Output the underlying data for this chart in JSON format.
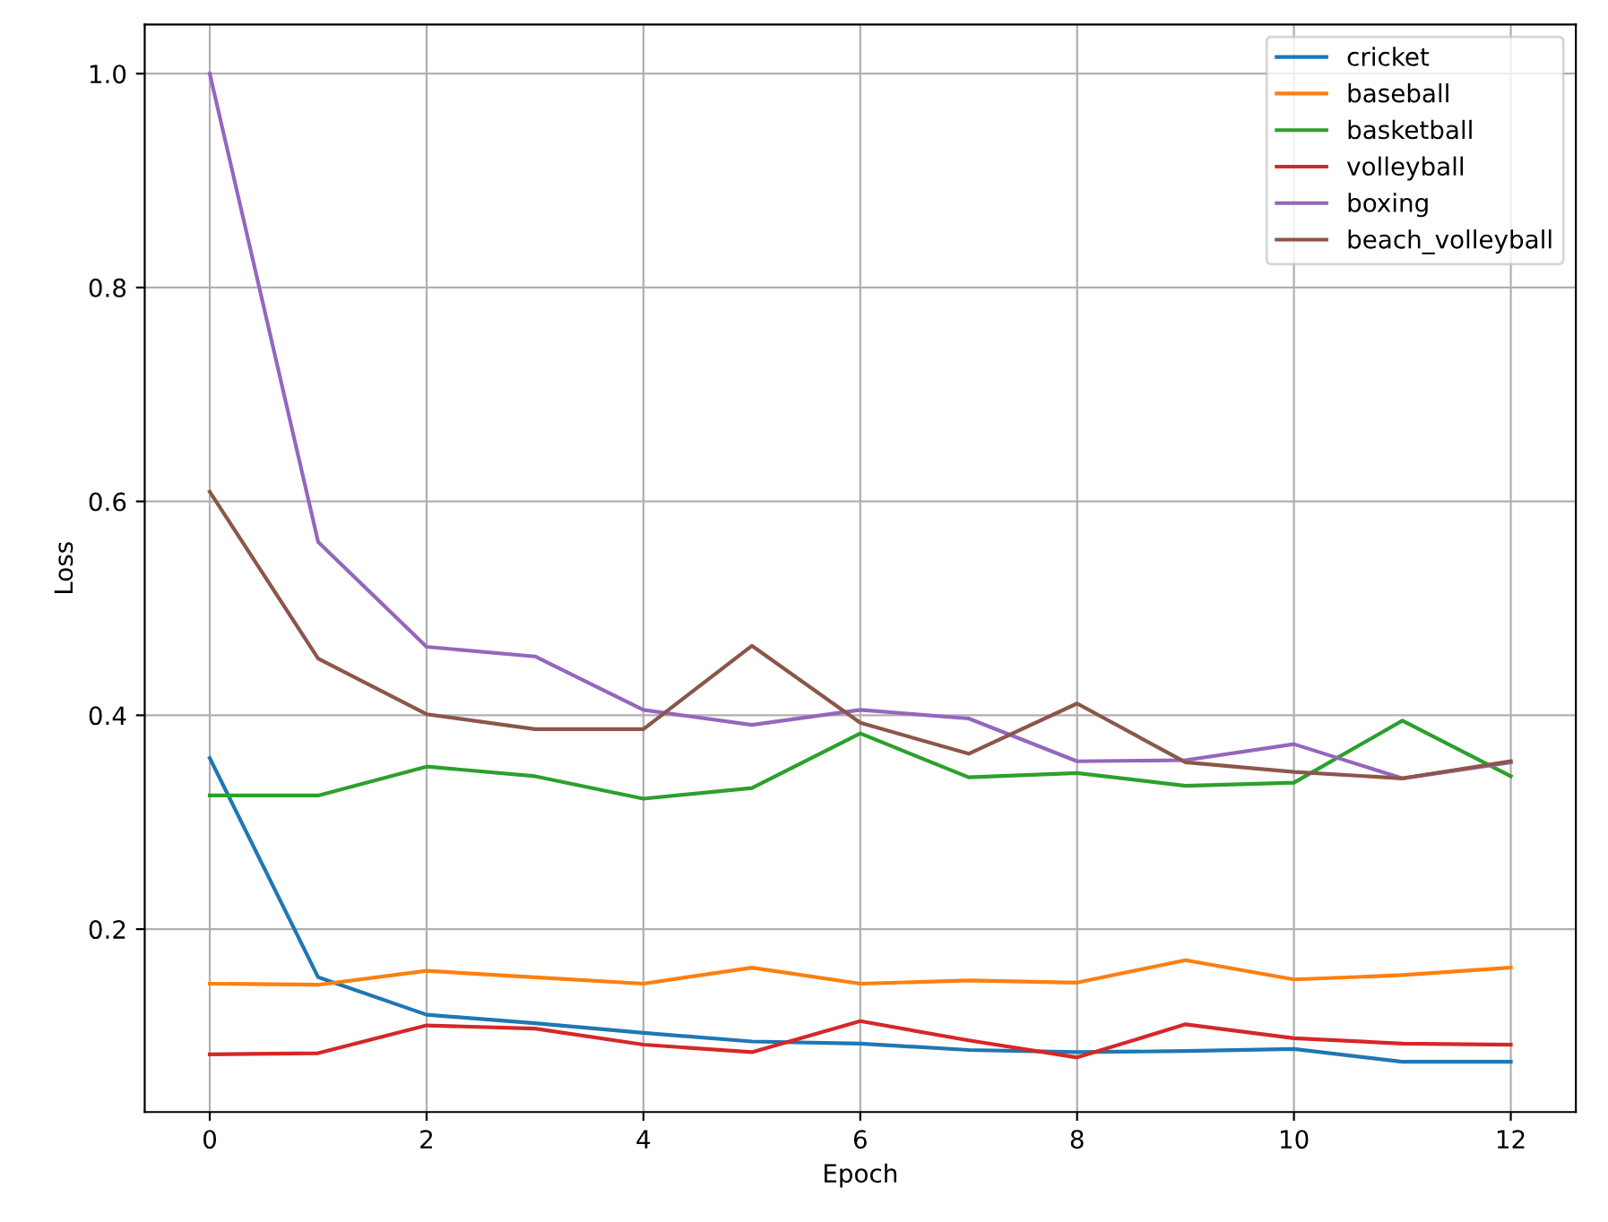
{
  "chart_data": {
    "type": "line",
    "xlabel": "Epoch",
    "ylabel": "Loss",
    "x": [
      0,
      1,
      2,
      3,
      4,
      5,
      6,
      7,
      8,
      9,
      10,
      11,
      12
    ],
    "series": [
      {
        "name": "cricket",
        "color": "#1f77b4",
        "values": [
          0.36,
          0.155,
          0.12,
          0.112,
          0.103,
          0.095,
          0.093,
          0.087,
          0.085,
          0.086,
          0.088,
          0.076,
          0.076
        ]
      },
      {
        "name": "baseball",
        "color": "#ff7f0e",
        "values": [
          0.149,
          0.148,
          0.161,
          0.155,
          0.149,
          0.164,
          0.149,
          0.152,
          0.15,
          0.171,
          0.153,
          0.157,
          0.164
        ]
      },
      {
        "name": "basketball",
        "color": "#2ca02c",
        "values": [
          0.325,
          0.325,
          0.352,
          0.343,
          0.322,
          0.332,
          0.383,
          0.342,
          0.346,
          0.334,
          0.337,
          0.395,
          0.343
        ]
      },
      {
        "name": "volleyball",
        "color": "#d62728",
        "values": [
          0.083,
          0.084,
          0.11,
          0.107,
          0.092,
          0.085,
          0.114,
          0.096,
          0.08,
          0.111,
          0.098,
          0.093,
          0.092
        ]
      },
      {
        "name": "boxing",
        "color": "#9467bd",
        "values": [
          1.0,
          0.562,
          0.464,
          0.455,
          0.405,
          0.391,
          0.405,
          0.397,
          0.357,
          0.358,
          0.373,
          0.341,
          0.356
        ]
      },
      {
        "name": "beach_volleyball",
        "color": "#8c564b",
        "values": [
          0.609,
          0.453,
          0.401,
          0.387,
          0.387,
          0.465,
          0.393,
          0.364,
          0.411,
          0.356,
          0.347,
          0.341,
          0.357
        ]
      }
    ],
    "xlim": [
      -0.6,
      12.6
    ],
    "ylim": [
      0.029,
      1.046
    ],
    "xticks": [
      0,
      2,
      4,
      6,
      8,
      10,
      12
    ],
    "yticks": [
      0.2,
      0.4,
      0.6,
      0.8,
      {
        "value": 1,
        "label": "1.0"
      }
    ],
    "grid": true,
    "legend": "top right",
    "marker": "none",
    "line_style": "solid"
  }
}
